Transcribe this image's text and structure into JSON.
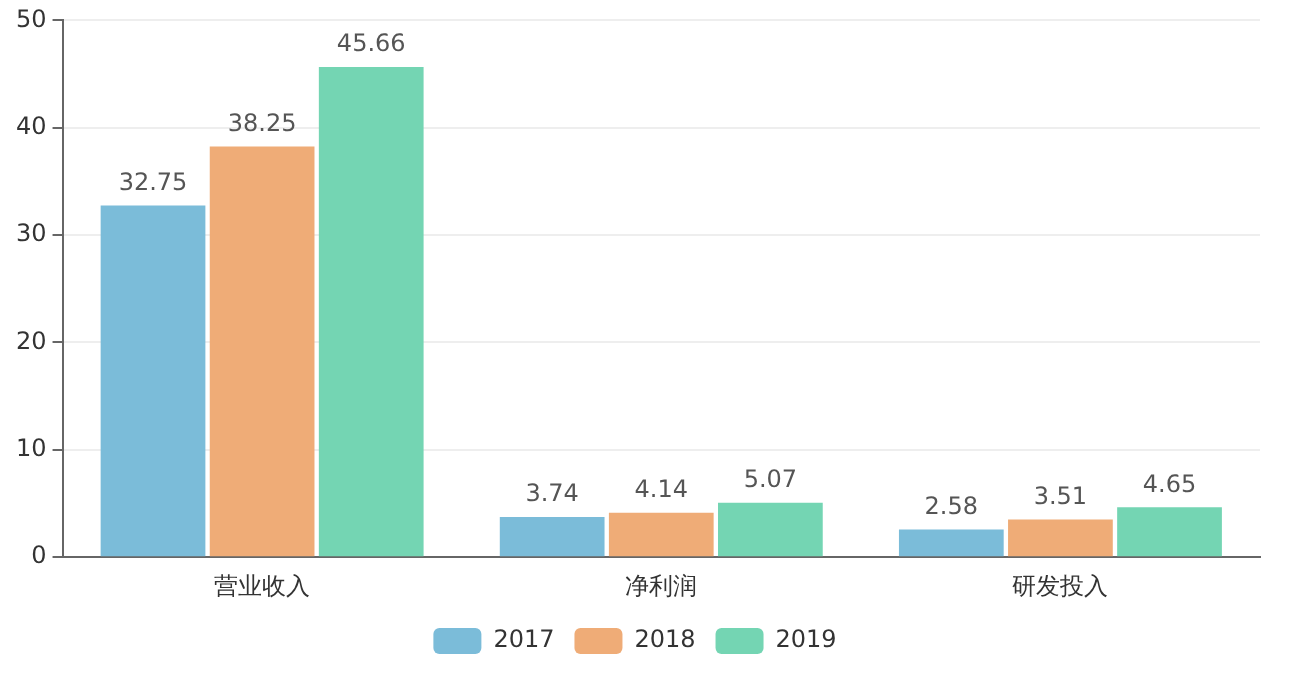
{
  "chart_data": {
    "type": "bar",
    "categories": [
      "营业收入",
      "净利润",
      "研发投入"
    ],
    "series": [
      {
        "name": "2017",
        "color": "#7bbcd9",
        "values": [
          32.75,
          3.74,
          2.58
        ]
      },
      {
        "name": "2018",
        "color": "#efac77",
        "values": [
          38.25,
          4.14,
          3.51
        ]
      },
      {
        "name": "2019",
        "color": "#74d5b3",
        "values": [
          45.66,
          5.07,
          4.65
        ]
      }
    ],
    "ylim": [
      0,
      50
    ],
    "yticks": [
      0,
      10,
      20,
      30,
      40,
      50
    ],
    "grid": "y",
    "legend": "bottom",
    "data_labels": true
  }
}
